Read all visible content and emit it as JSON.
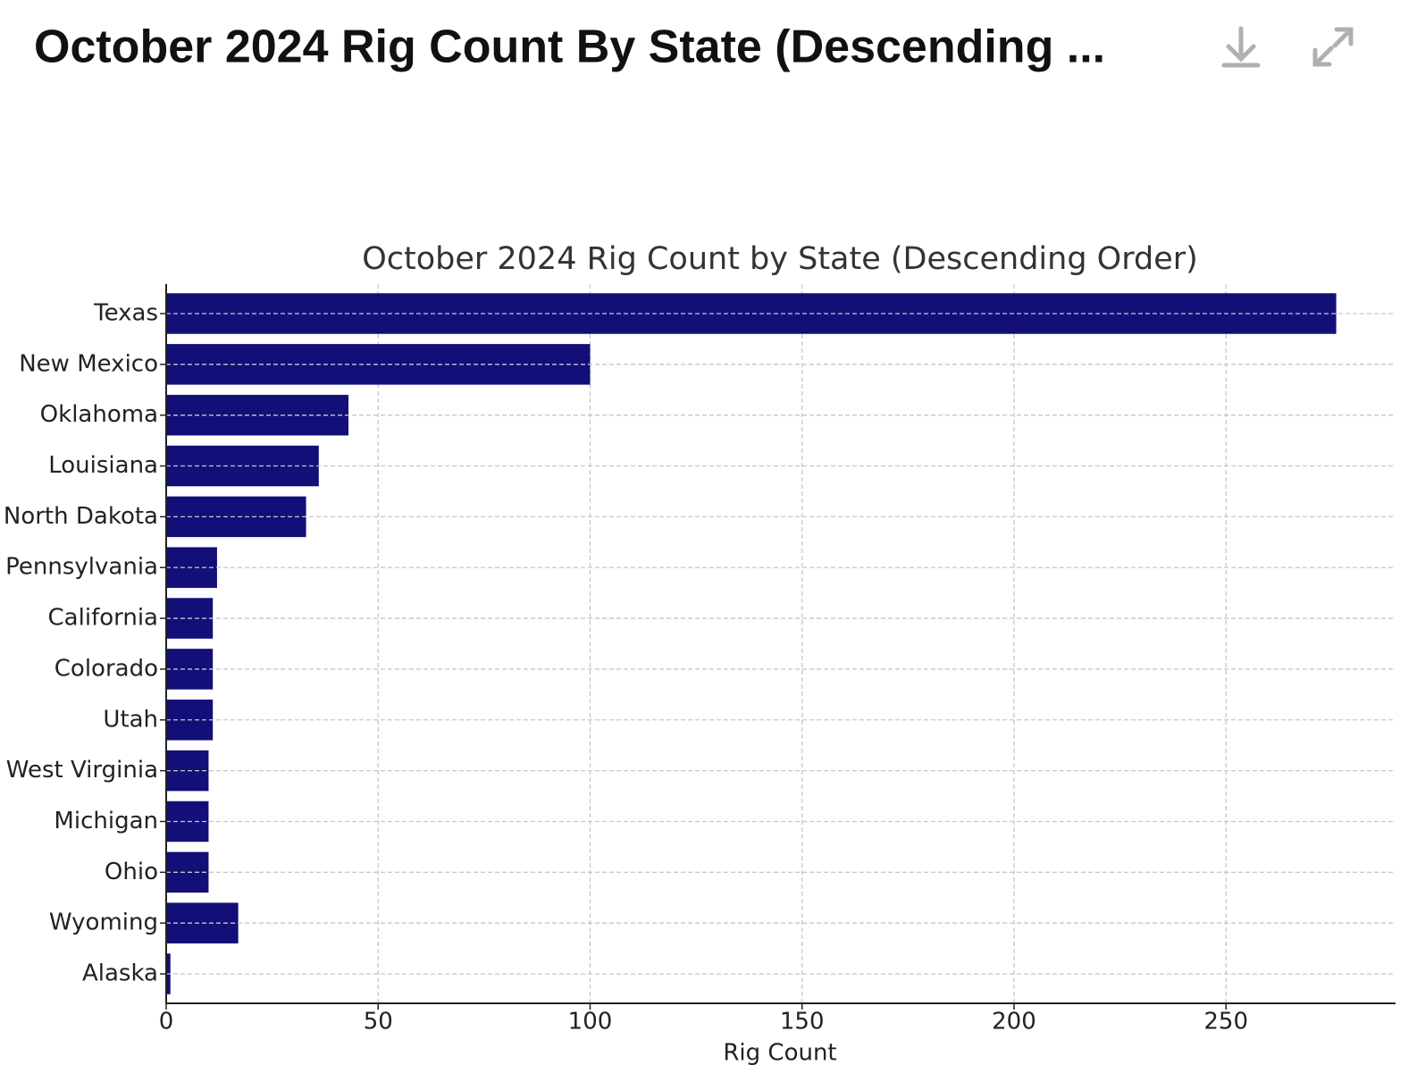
{
  "header_title": "October 2024 Rig Count By State (Descending ...",
  "chart_data": {
    "type": "barh",
    "title": "October 2024 Rig Count by State (Descending Order)",
    "x_label": "Rig Count",
    "categories": [
      "Texas",
      "New Mexico",
      "Oklahoma",
      "Louisiana",
      "North Dakota",
      "Pennsylvania",
      "California",
      "Colorado",
      "Utah",
      "West Virginia",
      "Michigan",
      "Ohio",
      "Wyoming",
      "Alaska"
    ],
    "values": [
      276,
      100,
      43,
      36,
      33,
      12,
      11,
      11,
      11,
      10,
      10,
      10,
      17,
      1
    ],
    "color": "#120f78",
    "xlim": [
      0,
      290
    ],
    "xticks": [
      0,
      50,
      100,
      150,
      200,
      250
    ],
    "grid": true
  }
}
